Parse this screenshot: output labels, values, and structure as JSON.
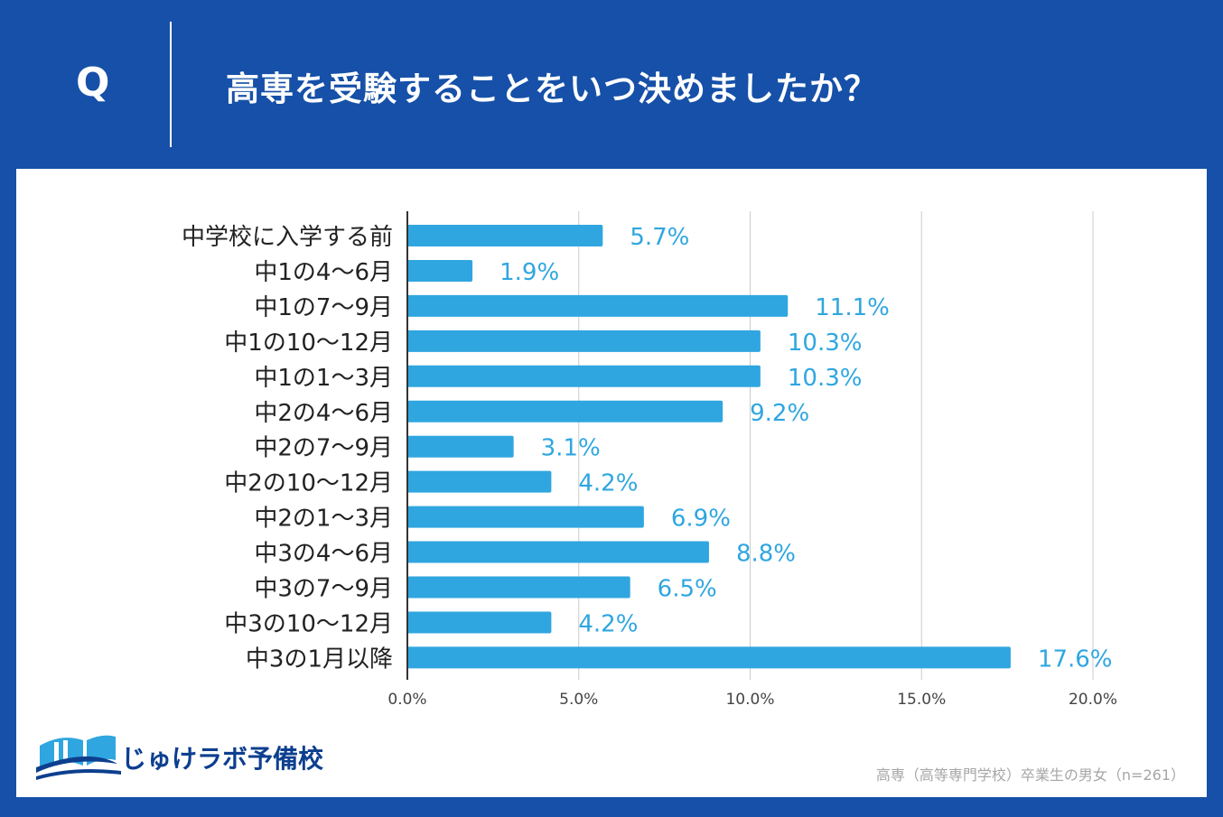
{
  "header": {
    "q_mark": "Q",
    "question": "高専を受験することをいつ決めましたか？"
  },
  "colors": {
    "background": "#1650a8",
    "bar": "#2fa6e0",
    "value_label": "#2fa6e0",
    "grid": "#cccccc",
    "axis": "#333333"
  },
  "chart_data": {
    "type": "bar",
    "orientation": "horizontal",
    "categories": [
      "中学校に入学する前",
      "中1の4〜6月",
      "中1の7〜9月",
      "中1の10〜12月",
      "中1の1〜3月",
      "中2の4〜6月",
      "中2の7〜9月",
      "中2の10〜12月",
      "中2の1〜3月",
      "中3の4〜6月",
      "中3の7〜9月",
      "中3の10〜12月",
      "中3の1月以降"
    ],
    "values": [
      5.7,
      1.9,
      11.1,
      10.3,
      10.3,
      9.2,
      3.1,
      4.2,
      6.9,
      8.8,
      6.5,
      4.2,
      17.6
    ],
    "value_labels": [
      "5.7%",
      "1.9%",
      "11.1%",
      "10.3%",
      "10.3%",
      "9.2%",
      "3.1%",
      "4.2%",
      "6.9%",
      "8.8%",
      "6.5%",
      "4.2%",
      "17.6%"
    ],
    "xlim": [
      0,
      20
    ],
    "xticks": [
      0,
      5,
      10,
      15,
      20
    ],
    "xtick_labels": [
      "0.0%",
      "5.0%",
      "10.0%",
      "15.0%",
      "20.0%"
    ],
    "grid": true
  },
  "logo": {
    "text": "じゅけラボ予備校",
    "icon": "open-book-icon"
  },
  "footnote": "高専（高等専門学校）卒業生の男女（n=261）"
}
